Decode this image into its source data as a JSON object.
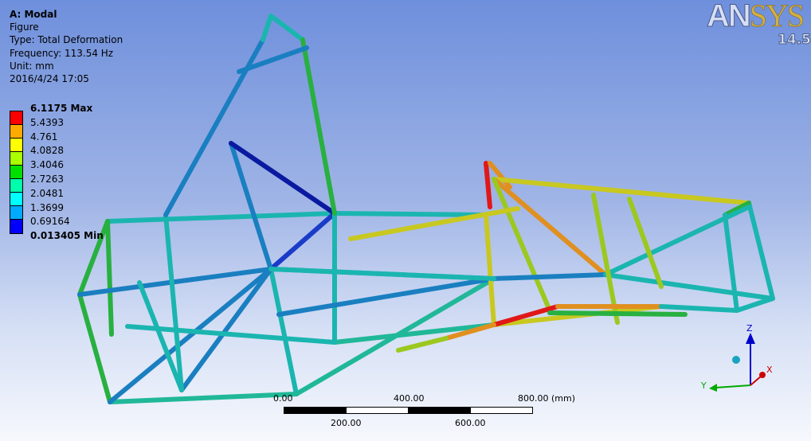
{
  "info": {
    "title": "A: Modal",
    "name": "Figure",
    "type": "Type: Total Deformation",
    "frequency": "Frequency: 113.54 Hz",
    "unit": "Unit: mm",
    "date": "2016/4/24 17:05"
  },
  "legend": {
    "labels": [
      "6.1175 Max",
      "5.4393",
      "4.761",
      "4.0828",
      "3.4046",
      "2.7263",
      "2.0481",
      "1.3699",
      "0.69164",
      "0.013405 Min"
    ],
    "colors": [
      "#ff0000",
      "#ffaa00",
      "#ffff00",
      "#aaff00",
      "#00e000",
      "#00ffaa",
      "#00ffff",
      "#00aaff",
      "#0000ff"
    ]
  },
  "logo": {
    "text": "ANSYS",
    "version": "14.5"
  },
  "scale_bar": {
    "top_labels": [
      "0.00",
      "400.00",
      "800.00 (mm)"
    ],
    "bottom_labels": [
      "200.00",
      "600.00"
    ]
  },
  "triad": {
    "x": "X",
    "y": "Y",
    "z": "Z"
  }
}
